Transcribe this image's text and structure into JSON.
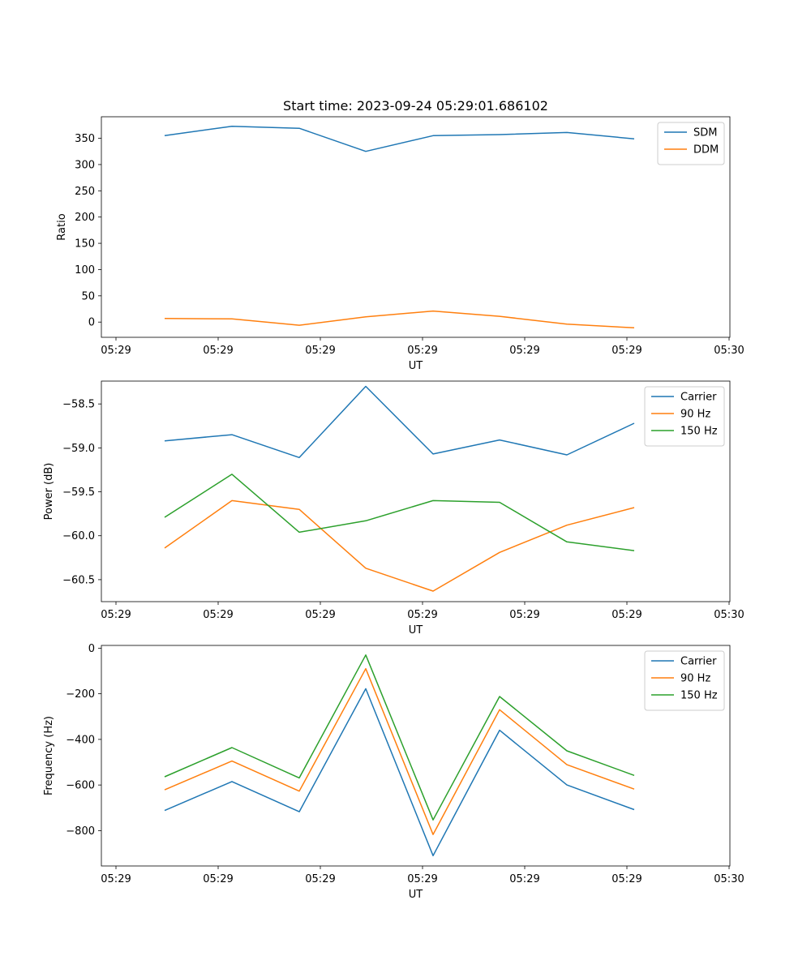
{
  "chart_data": [
    {
      "type": "line",
      "title": "Start time: 2023-09-24 05:29:01.686102",
      "xlabel": "UT",
      "ylabel": "Ratio",
      "x_tick_labels": [
        "05:29",
        "05:29",
        "05:29",
        "05:29",
        "05:29",
        "05:29",
        "05:30"
      ],
      "y_ticks": [
        0,
        50,
        100,
        150,
        200,
        250,
        300,
        350
      ],
      "ylim": [
        -29,
        391
      ],
      "legend_position": "top-right",
      "series": [
        {
          "name": "SDM",
          "color": "#1f77b4",
          "values": [
            355,
            373,
            369,
            325,
            355,
            357,
            361,
            349
          ]
        },
        {
          "name": "DDM",
          "color": "#ff7f0e",
          "values": [
            7,
            6,
            -6,
            10,
            21,
            11,
            -4,
            -11
          ]
        }
      ]
    },
    {
      "type": "line",
      "title": "",
      "xlabel": "UT",
      "ylabel": "Power (dB)",
      "x_tick_labels": [
        "05:29",
        "05:29",
        "05:29",
        "05:29",
        "05:29",
        "05:29",
        "05:30"
      ],
      "y_ticks": [
        -58.5,
        -59.0,
        -59.5,
        -60.0,
        -60.5
      ],
      "y_tick_labels": [
        "−58.5",
        "−59.0",
        "−59.5",
        "−60.0",
        "−60.5"
      ],
      "ylim": [
        -60.75,
        -58.24
      ],
      "legend_position": "top-right",
      "series": [
        {
          "name": "Carrier",
          "color": "#1f77b4",
          "values": [
            -58.92,
            -58.85,
            -59.11,
            -58.3,
            -59.07,
            -58.91,
            -59.08,
            -58.72
          ]
        },
        {
          "name": "90 Hz",
          "color": "#ff7f0e",
          "values": [
            -60.14,
            -59.6,
            -59.7,
            -60.37,
            -60.63,
            -60.19,
            -59.88,
            -59.68
          ]
        },
        {
          "name": "150 Hz",
          "color": "#2ca02c",
          "values": [
            -59.79,
            -59.3,
            -59.96,
            -59.83,
            -59.6,
            -59.62,
            -60.07,
            -60.17
          ]
        }
      ]
    },
    {
      "type": "line",
      "title": "",
      "xlabel": "UT",
      "ylabel": "Frequency (Hz)",
      "x_tick_labels": [
        "05:29",
        "05:29",
        "05:29",
        "05:29",
        "05:29",
        "05:29",
        "05:30"
      ],
      "y_ticks": [
        0,
        -200,
        -400,
        -600,
        -800
      ],
      "y_tick_labels": [
        "0",
        "−200",
        "−400",
        "−600",
        "−800"
      ],
      "ylim": [
        -955,
        12
      ],
      "legend_position": "top-right",
      "series": [
        {
          "name": "Carrier",
          "color": "#1f77b4",
          "values": [
            -712,
            -585,
            -717,
            -178,
            -910,
            -360,
            -600,
            -708
          ]
        },
        {
          "name": "90 Hz",
          "color": "#ff7f0e",
          "values": [
            -621,
            -495,
            -627,
            -90,
            -817,
            -270,
            -511,
            -618
          ]
        },
        {
          "name": "150 Hz",
          "color": "#2ca02c",
          "values": [
            -564,
            -436,
            -569,
            -30,
            -753,
            -212,
            -450,
            -558
          ]
        }
      ]
    }
  ]
}
